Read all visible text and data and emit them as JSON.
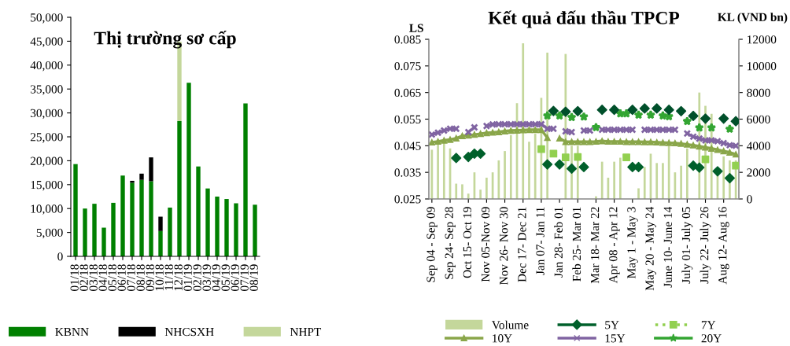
{
  "chart_data": [
    {
      "type": "bar",
      "title": "Thị trường sơ cấp",
      "stacked": true,
      "legend": "bottom",
      "grid": false,
      "categories": [
        "01/18",
        "02/18",
        "03/18",
        "04/18",
        "05/18",
        "06/18",
        "07/18",
        "08/18",
        "09/18",
        "10/18",
        "11/18",
        "12/18",
        "01/19",
        "02/19",
        "03/19",
        "04/19",
        "05/19",
        "06/19",
        "07/19",
        "08/19"
      ],
      "series": [
        {
          "name": "KBNN",
          "color": "#008000",
          "values": [
            19300,
            10000,
            11000,
            6000,
            11200,
            16900,
            15400,
            16000,
            15700,
            5300,
            10200,
            28300,
            36300,
            18800,
            14200,
            12500,
            12000,
            11100,
            32000,
            10800
          ]
        },
        {
          "name": "NHCSXH",
          "color": "#000000",
          "values": [
            0,
            0,
            0,
            0,
            0,
            0,
            400,
            1300,
            5000,
            3000,
            0,
            0,
            0,
            0,
            0,
            0,
            0,
            0,
            0,
            0
          ]
        },
        {
          "name": "NHPT",
          "color": "#c4d79b",
          "values": [
            0,
            0,
            0,
            0,
            0,
            0,
            0,
            0,
            0,
            0,
            0,
            16600,
            0,
            0,
            0,
            0,
            0,
            0,
            0,
            0
          ]
        }
      ],
      "ylim": [
        0,
        50000
      ],
      "yticks": [
        {
          "value": 0,
          "label": "0"
        },
        {
          "value": 5000,
          "label": "5,000"
        },
        {
          "value": 10000,
          "label": "10,000"
        },
        {
          "value": 15000,
          "label": "15,000"
        },
        {
          "value": 20000,
          "label": "20,000"
        },
        {
          "value": 25000,
          "label": "25,000"
        },
        {
          "value": 30000,
          "label": "30,000"
        },
        {
          "value": 35000,
          "label": "35,000"
        },
        {
          "value": 40000,
          "label": "40,000"
        },
        {
          "value": 45000,
          "label": "45,000"
        },
        {
          "value": 50000,
          "label": "50,000"
        }
      ]
    },
    {
      "type": "line",
      "title": "Kết quả đấu thầu TPCP",
      "ylabel": "LS",
      "y2label": "KL (VND bn)",
      "legend": "bottom",
      "grid": false,
      "categories": [
        "Sep 04 - Sep 09",
        null,
        null,
        "Sep 24- Sep 28",
        null,
        null,
        "Oct 15- Oct 19",
        null,
        null,
        "Nov 05-Nov 09",
        null,
        null,
        "Nov 26- Nov 30",
        null,
        null,
        "Dec 17- Dec 21",
        null,
        null,
        "Jan 07- Jan 11",
        null,
        null,
        "Jan 28- Feb 01",
        null,
        null,
        "Feb 25- Mar 01",
        null,
        null,
        "Mar 18- Mar 22",
        null,
        null,
        "Apr 08 - Apr 12",
        null,
        null,
        "May 1 - May 3",
        null,
        null,
        "May 20 - May 24",
        null,
        null,
        "June 10- June 14",
        null,
        null,
        "July 01- July 05",
        null,
        null,
        "July 22- July 26",
        null,
        null,
        "Aug 12- Aug 16",
        null,
        null
      ],
      "series": [
        {
          "name": "Volume",
          "type": "bar",
          "axis": "y2",
          "color": "#c4d79b",
          "values": [
            3700,
            4100,
            4200,
            3800,
            1150,
            1100,
            400,
            2000,
            700,
            1600,
            2000,
            2900,
            3600,
            4800,
            7200,
            11700,
            4300,
            4900,
            7600,
            11000,
            null,
            null,
            10900,
            4000,
            4000,
            null,
            null,
            200,
            2800,
            1600,
            2800,
            3100,
            null,
            null,
            800,
            2400,
            3400,
            2700,
            2700,
            4000,
            2000,
            2500,
            3800,
            null,
            8000,
            7000,
            6400,
            1900,
            3200,
            2900,
            2900
          ]
        },
        {
          "name": "5Y",
          "type": "scatter",
          "color": "#00602b",
          "marker": "diamond",
          "line_style": "solid",
          "values": [
            null,
            null,
            null,
            null,
            0.0404,
            null,
            0.0408,
            0.042,
            0.042,
            null,
            null,
            null,
            null,
            null,
            null,
            null,
            null,
            null,
            null,
            0.038,
            null,
            0.038,
            null,
            0.0364,
            null,
            0.037,
            null,
            null,
            null,
            null,
            null,
            null,
            null,
            0.037,
            0.037,
            null,
            null,
            null,
            null,
            null,
            null,
            null,
            null,
            0.0375,
            0.0368,
            null,
            null,
            0.0354,
            null,
            0.0328,
            null
          ]
        },
        {
          "type": "scatter",
          "color": "#00502b",
          "marker": "diamond",
          "values": [
            null,
            null,
            null,
            null,
            null,
            null,
            null,
            null,
            null,
            null,
            null,
            null,
            null,
            null,
            null,
            null,
            null,
            null,
            null,
            null,
            0.0581,
            null,
            0.0578,
            null,
            0.058,
            null,
            null,
            null,
            0.0585,
            null,
            0.0585,
            null,
            null,
            0.0585,
            null,
            0.059,
            null,
            0.059,
            null,
            0.0585,
            null,
            0.058,
            null,
            0.0562,
            null,
            0.0552,
            null,
            null,
            0.0552,
            null,
            0.0542
          ]
        },
        {
          "name": "7Y",
          "type": "scatter",
          "color": "#92d050",
          "marker": "square",
          "line_style": "dotted",
          "values": [
            null,
            null,
            null,
            null,
            null,
            null,
            null,
            null,
            null,
            null,
            null,
            null,
            null,
            null,
            null,
            null,
            null,
            null,
            0.0437,
            null,
            0.042,
            null,
            0.0406,
            null,
            0.0408,
            null,
            null,
            null,
            null,
            null,
            null,
            null,
            0.0406,
            null,
            null,
            null,
            null,
            null,
            null,
            null,
            null,
            null,
            null,
            null,
            null,
            0.0399,
            null,
            null,
            null,
            null,
            0.0375
          ]
        },
        {
          "name": "10Y",
          "color": "#8aa64a",
          "marker": "triangle",
          "line_style": "solid",
          "values": [
            0.0463,
            0.0466,
            0.047,
            0.0473,
            0.0478,
            0.0487,
            0.0489,
            0.0492,
            0.0495,
            0.0498,
            0.05,
            0.0502,
            0.0505,
            0.0507,
            0.0508,
            0.0509,
            0.051,
            0.051,
            0.051,
            0.048,
            null,
            0.0478,
            0.0465,
            0.0465,
            0.0465,
            0.0465,
            0.0465,
            0.0466,
            0.0468,
            0.0466,
            0.0466,
            0.0466,
            0.0465,
            0.0465,
            0.0465,
            0.0464,
            0.0464,
            0.0463,
            0.0462,
            0.0461,
            0.046,
            0.0458,
            0.0455,
            0.0452,
            0.0448,
            0.0444,
            0.044,
            0.0435,
            0.043,
            0.0425,
            0.0418
          ]
        },
        {
          "name": "15Y",
          "color": "#8064a2",
          "marker": "cross",
          "line_style": "solid",
          "values": [
            0.0492,
            0.0499,
            0.0507,
            0.0514,
            0.0514,
            null,
            0.0501,
            0.0519,
            null,
            0.0524,
            0.053,
            0.0531,
            0.0531,
            0.0531,
            0.0531,
            0.0531,
            0.0531,
            0.0531,
            0.0531,
            0.0514,
            0.0514,
            null,
            0.0504,
            0.0501,
            null,
            0.0507,
            0.0507,
            null,
            0.051,
            0.051,
            0.051,
            0.051,
            0.051,
            0.051,
            null,
            0.051,
            0.051,
            0.051,
            0.051,
            0.051,
            0.051,
            null,
            0.0496,
            0.0484,
            0.0477,
            0.047,
            0.047,
            0.0467,
            0.046,
            0.0452,
            0.045
          ]
        },
        {
          "name": "20Y",
          "color": "#33a532",
          "marker": "star",
          "line_style": "solid",
          "values": [
            null,
            null,
            null,
            null,
            null,
            null,
            null,
            null,
            null,
            null,
            null,
            null,
            null,
            null,
            null,
            null,
            null,
            null,
            null,
            0.0563,
            null,
            0.0563,
            null,
            0.0557,
            null,
            0.0559,
            null,
            0.0519,
            null,
            null,
            null,
            0.0571,
            0.0571,
            null,
            0.0566,
            null,
            0.0566,
            null,
            0.0563,
            0.056,
            null,
            null,
            0.0542,
            null,
            0.0518,
            null,
            0.0518,
            null,
            null,
            0.0513,
            null
          ]
        }
      ],
      "ylim": [
        0.025,
        0.085
      ],
      "yticks": [
        0.025,
        0.035,
        0.045,
        0.055,
        0.065,
        0.075,
        0.085
      ],
      "y2lim": [
        0,
        12000
      ],
      "y2ticks": [
        0,
        2000,
        4000,
        6000,
        8000,
        10000,
        12000
      ]
    }
  ]
}
